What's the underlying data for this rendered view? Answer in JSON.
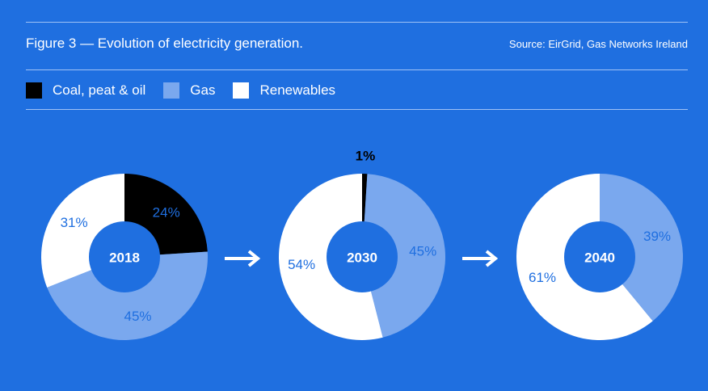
{
  "header": {
    "title": "Figure 3 — Evolution of electricity generation.",
    "source": "Source: EirGrid, Gas Networks Ireland"
  },
  "legend": [
    {
      "label": "Coal, peat & oil",
      "color": "#000000"
    },
    {
      "label": "Gas",
      "color": "#7aa8ee"
    },
    {
      "label": "Renewables",
      "color": "#ffffff"
    }
  ],
  "colors": {
    "background": "#1f6fe0",
    "coal": "#000000",
    "gas": "#7aa8ee",
    "renewables": "#ffffff",
    "label_blue": "#1f6fe0"
  },
  "chart_data": [
    {
      "type": "pie",
      "center_label": "2018",
      "slices": [
        {
          "name": "Coal, peat & oil",
          "value": 24,
          "label": "24%"
        },
        {
          "name": "Gas",
          "value": 45,
          "label": "45%"
        },
        {
          "name": "Renewables",
          "value": 31,
          "label": "31%"
        }
      ]
    },
    {
      "type": "pie",
      "center_label": "2030",
      "slices": [
        {
          "name": "Coal, peat & oil",
          "value": 1,
          "label": "1%"
        },
        {
          "name": "Gas",
          "value": 45,
          "label": "45%"
        },
        {
          "name": "Renewables",
          "value": 54,
          "label": "54%"
        }
      ]
    },
    {
      "type": "pie",
      "center_label": "2040",
      "slices": [
        {
          "name": "Coal, peat & oil",
          "value": 0,
          "label": ""
        },
        {
          "name": "Gas",
          "value": 39,
          "label": "39%"
        },
        {
          "name": "Renewables",
          "value": 61,
          "label": "61%"
        }
      ]
    }
  ]
}
